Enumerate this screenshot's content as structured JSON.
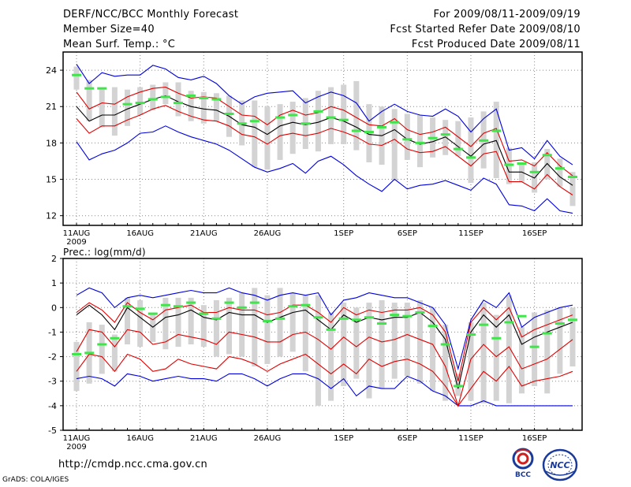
{
  "header": {
    "title": "DERF/NCC/BCC Monthly Forecast",
    "member_size": "Member Size=40",
    "variable": "Mean Surf. Temp.: °C",
    "period": "For 2009/08/11-2009/09/19",
    "fcst_started": "Fcst Started Refer Date 2009/08/10",
    "fcst_produced": "Fcst Produced Date 2009/08/11"
  },
  "footer": {
    "url": "http://cmdp.ncc.cma.gov.cn",
    "credit": "GrADS: COLA/IGES",
    "logo_left_text": "BCC",
    "logo_right_text": "NCC"
  },
  "colors": {
    "outer": "#0000dd",
    "inner": "#e00000",
    "median": "#000000",
    "box": "#d3d3d3",
    "obs": "#3ee64a",
    "grid": "#888888"
  },
  "chart_data": [
    {
      "type": "line",
      "title": "Mean Surf. Temp.: °C",
      "x_label_year": "2009",
      "x_tick_labels": [
        "11AUG",
        "16AUG",
        "21AUG",
        "26AUG",
        "1SEP",
        "6SEP",
        "11SEP",
        "16SEP"
      ],
      "x_tick_days": [
        0,
        5,
        10,
        15,
        21,
        26,
        31,
        36
      ],
      "days": 40,
      "ylim": [
        11.2,
        25.5
      ],
      "y_ticks": [
        12,
        15,
        18,
        21,
        24
      ],
      "series": {
        "median": [
          21,
          19.8,
          20.3,
          20.3,
          20.8,
          21.2,
          21.6,
          21.9,
          21.4,
          21,
          20.8,
          20.7,
          20.2,
          19.5,
          19.3,
          18.7,
          19.4,
          19.7,
          19.5,
          19.7,
          20.1,
          19.8,
          19.3,
          18.7,
          18.6,
          19.1,
          18.3,
          17.9,
          18.1,
          18.5,
          17.7,
          16.9,
          17.9,
          18.2,
          15.6,
          15.6,
          15.1,
          16.3,
          15.2,
          14.5
        ],
        "red_upper": [
          22.2,
          20.8,
          21.3,
          21.2,
          21.8,
          22.2,
          22.5,
          22.6,
          22.1,
          21.7,
          21.8,
          21.7,
          21.0,
          20.3,
          20.2,
          19.5,
          20.3,
          20.7,
          20.3,
          20.5,
          21.0,
          20.7,
          20.1,
          19.5,
          19.4,
          20.0,
          19.1,
          18.7,
          18.9,
          19.3,
          18.5,
          17.7,
          18.8,
          19.2,
          16.5,
          16.6,
          16.1,
          17.2,
          16.1,
          15.3
        ],
        "red_lower": [
          20.0,
          18.8,
          19.4,
          19.4,
          19.9,
          20.3,
          20.8,
          21.1,
          20.6,
          20.2,
          19.9,
          19.8,
          19.4,
          18.7,
          18.5,
          17.9,
          18.6,
          18.8,
          18.6,
          18.8,
          19.2,
          18.9,
          18.5,
          17.9,
          17.8,
          18.3,
          17.5,
          17.2,
          17.3,
          17.7,
          16.9,
          16.1,
          17.1,
          17.3,
          14.8,
          14.8,
          14.2,
          15.4,
          14.4,
          13.7
        ],
        "blue_upper": [
          24.5,
          22.9,
          23.8,
          23.5,
          23.6,
          23.6,
          24.4,
          24.1,
          23.4,
          23.2,
          23.5,
          22.9,
          21.9,
          21.2,
          21.8,
          22.1,
          22.2,
          22.3,
          21.3,
          21.8,
          22.2,
          21.9,
          21.3,
          19.8,
          20.6,
          21.2,
          20.6,
          20.3,
          20.2,
          20.8,
          20.2,
          18.9,
          20.0,
          20.8,
          17.4,
          17.6,
          16.7,
          18.2,
          16.9,
          16.2
        ],
        "blue_lower": [
          18.1,
          16.6,
          17.1,
          17.4,
          18.0,
          18.8,
          18.9,
          19.4,
          18.9,
          18.5,
          18.2,
          17.9,
          17.4,
          16.7,
          16.0,
          15.6,
          15.9,
          16.3,
          15.5,
          16.5,
          16.9,
          16.2,
          15.3,
          14.6,
          14.0,
          15.0,
          14.2,
          14.5,
          14.6,
          14.9,
          14.5,
          14.1,
          15.1,
          14.6,
          12.9,
          12.8,
          12.4,
          13.4,
          12.4,
          12.2
        ],
        "box_high": [
          24.3,
          23.2,
          22.4,
          22.6,
          22.4,
          22.6,
          22.8,
          23.0,
          23.0,
          22.3,
          22.2,
          22.1,
          21.9,
          21.5,
          21.5,
          21.0,
          21.2,
          21.4,
          21.7,
          22.3,
          22.6,
          22.8,
          23.1,
          21.2,
          21.0,
          20.8,
          20.4,
          20.3,
          20.1,
          19.9,
          19.8,
          20.1,
          20.6,
          21.4,
          17.6,
          16.3,
          16.4,
          17.5,
          16.7,
          15.6
        ],
        "box_low": [
          22.4,
          19.8,
          19.3,
          18.6,
          19.4,
          20.3,
          20.7,
          21.2,
          20.2,
          19.8,
          19.6,
          19.8,
          18.5,
          17.8,
          16.0,
          15.8,
          16.6,
          17.1,
          17.5,
          17.3,
          17.9,
          17.9,
          17.4,
          16.4,
          16.2,
          14.9,
          16.6,
          16.0,
          16.8,
          17.0,
          16.9,
          14.7,
          15.9,
          15.1,
          14.6,
          14.8,
          13.9,
          15.0,
          14.4,
          12.8
        ],
        "observed": [
          23.6,
          22.5,
          22.5,
          null,
          21.2,
          21.3,
          21.6,
          21.8,
          21.3,
          21.9,
          21.7,
          21.6,
          20.4,
          19.6,
          19.8,
          null,
          20.1,
          20.3,
          19.6,
          20.6,
          20.1,
          19.9,
          19.0,
          18.9,
          19.3,
          19.7,
          18.3,
          18.0,
          18.4,
          18.7,
          17.5,
          16.8,
          18.2,
          19.0,
          16.2,
          16.3,
          15.6,
          17.0,
          15.9,
          15.2
        ]
      }
    },
    {
      "type": "line",
      "title": "Prec.: log(mm/d)",
      "x_label_year": "2009",
      "x_tick_labels": [
        "11AUG",
        "16AUG",
        "21AUG",
        "26AUG",
        "1SEP",
        "6SEP",
        "11SEP",
        "16SEP"
      ],
      "x_tick_days": [
        0,
        5,
        10,
        15,
        21,
        26,
        31,
        36
      ],
      "days": 40,
      "ylim": [
        -5,
        2
      ],
      "y_ticks": [
        -5,
        -4,
        -3,
        -2,
        -1,
        0,
        1,
        2
      ],
      "series": {
        "median": [
          -0.3,
          0.1,
          -0.3,
          -0.9,
          0.0,
          -0.4,
          -0.8,
          -0.4,
          -0.3,
          -0.1,
          -0.4,
          -0.5,
          -0.2,
          -0.3,
          -0.3,
          -0.6,
          -0.4,
          -0.2,
          -0.1,
          -0.5,
          -0.9,
          -0.3,
          -0.6,
          -0.4,
          -0.5,
          -0.4,
          -0.4,
          -0.2,
          -0.6,
          -1.3,
          -3.3,
          -1.0,
          -0.3,
          -0.8,
          -0.3,
          -1.5,
          -1.2,
          -1.0,
          -0.8,
          -0.6
        ],
        "red_upper": [
          -0.2,
          0.2,
          -0.1,
          -0.6,
          0.2,
          -0.2,
          -0.5,
          -0.1,
          0.0,
          0.1,
          -0.2,
          -0.2,
          0.0,
          -0.1,
          -0.1,
          -0.3,
          -0.2,
          0.1,
          0.1,
          -0.2,
          -0.6,
          0.0,
          -0.3,
          -0.1,
          -0.2,
          -0.1,
          -0.1,
          0.0,
          -0.3,
          -1.0,
          -3.0,
          -0.6,
          0.0,
          -0.5,
          0.0,
          -1.2,
          -0.9,
          -0.7,
          -0.5,
          -0.3
        ],
        "red_lower": [
          -1.8,
          -0.9,
          -1.0,
          -1.6,
          -0.9,
          -1.0,
          -1.5,
          -1.4,
          -1.1,
          -1.2,
          -1.3,
          -1.5,
          -1.0,
          -1.1,
          -1.2,
          -1.4,
          -1.4,
          -1.1,
          -1.0,
          -1.3,
          -1.7,
          -1.2,
          -1.6,
          -1.2,
          -1.4,
          -1.3,
          -1.1,
          -1.3,
          -1.5,
          -2.4,
          -4.0,
          -2.1,
          -1.5,
          -2.0,
          -1.6,
          -2.5,
          -2.3,
          -2.1,
          -1.7,
          -1.3
        ],
        "red_lowest": [
          -2.6,
          -1.9,
          -2.0,
          -2.6,
          -1.9,
          -2.1,
          -2.6,
          -2.5,
          -2.1,
          -2.3,
          -2.4,
          -2.5,
          -2.0,
          -2.1,
          -2.3,
          -2.6,
          -2.3,
          -2.1,
          -1.9,
          -2.3,
          -2.7,
          -2.3,
          -2.7,
          -2.1,
          -2.4,
          -2.2,
          -2.1,
          -2.3,
          -2.6,
          -3.2,
          -4.0,
          -3.3,
          -2.6,
          -3.0,
          -2.4,
          -3.2,
          -3.0,
          -2.9,
          -2.8,
          -2.6
        ],
        "blue_upper": [
          0.5,
          0.8,
          0.6,
          0.0,
          0.4,
          0.5,
          0.4,
          0.5,
          0.6,
          0.7,
          0.6,
          0.6,
          0.8,
          0.6,
          0.5,
          0.3,
          0.5,
          0.6,
          0.5,
          0.6,
          -0.3,
          0.3,
          0.4,
          0.6,
          0.5,
          0.4,
          0.4,
          0.2,
          0.0,
          -0.7,
          -2.5,
          -0.5,
          0.3,
          0.0,
          0.6,
          -0.8,
          -0.4,
          -0.2,
          0.0,
          0.1
        ],
        "blue_lower": [
          -2.9,
          -2.8,
          -2.9,
          -3.2,
          -2.7,
          -2.8,
          -3.0,
          -2.9,
          -2.8,
          -2.9,
          -2.9,
          -3.0,
          -2.7,
          -2.7,
          -2.9,
          -3.2,
          -2.9,
          -2.7,
          -2.7,
          -2.9,
          -3.3,
          -2.9,
          -3.6,
          -3.2,
          -3.3,
          -3.3,
          -2.8,
          -3.0,
          -3.4,
          -3.6,
          -4.0,
          -4.0,
          -3.8,
          -4.0,
          -4.0,
          -4.0,
          -4.0,
          -4.0,
          -4.0,
          -4.0
        ],
        "box_high": [
          -1.4,
          -0.6,
          -0.7,
          -1.1,
          0.4,
          0.3,
          -0.2,
          0.4,
          0.4,
          0.4,
          0.1,
          0.3,
          0.4,
          0.6,
          0.8,
          0.5,
          0.8,
          0.6,
          0.5,
          0.5,
          -0.2,
          0.2,
          0.0,
          0.2,
          0.3,
          0.2,
          0.2,
          0.3,
          0.0,
          -0.7,
          -2.7,
          -0.6,
          0.2,
          -0.3,
          0.5,
          -0.8,
          -0.2,
          -0.1,
          0.0,
          0.0
        ],
        "box_low": [
          -3.4,
          -3.1,
          -2.7,
          -2.6,
          -1.5,
          -1.6,
          -1.4,
          -1.7,
          -1.6,
          -1.5,
          -1.6,
          -2.0,
          -1.9,
          -2.0,
          -2.4,
          -2.3,
          -2.0,
          -1.8,
          -2.6,
          -4.0,
          -3.8,
          -3.2,
          -2.9,
          -3.7,
          -3.3,
          -2.9,
          -2.8,
          -3.1,
          -3.4,
          -3.8,
          -3.6,
          -3.8,
          -3.9,
          -3.8,
          -3.9,
          -3.5,
          -3.2,
          -3.5,
          -2.7,
          -2.4
        ],
        "observed": [
          -1.9,
          -1.85,
          -1.5,
          -1.25,
          0.05,
          -0.05,
          -0.25,
          0.1,
          0.05,
          0.2,
          -0.25,
          -0.45,
          0.2,
          0.0,
          0.2,
          -0.55,
          -0.45,
          0.05,
          0.1,
          -0.4,
          -0.9,
          -0.45,
          -0.5,
          -0.4,
          -0.65,
          -0.3,
          -0.35,
          -0.2,
          -0.75,
          -1.5,
          -3.2,
          -1.1,
          -0.7,
          -1.25,
          -0.6,
          -0.35,
          -1.6,
          -1.05,
          -0.65,
          -0.5
        ]
      }
    }
  ]
}
